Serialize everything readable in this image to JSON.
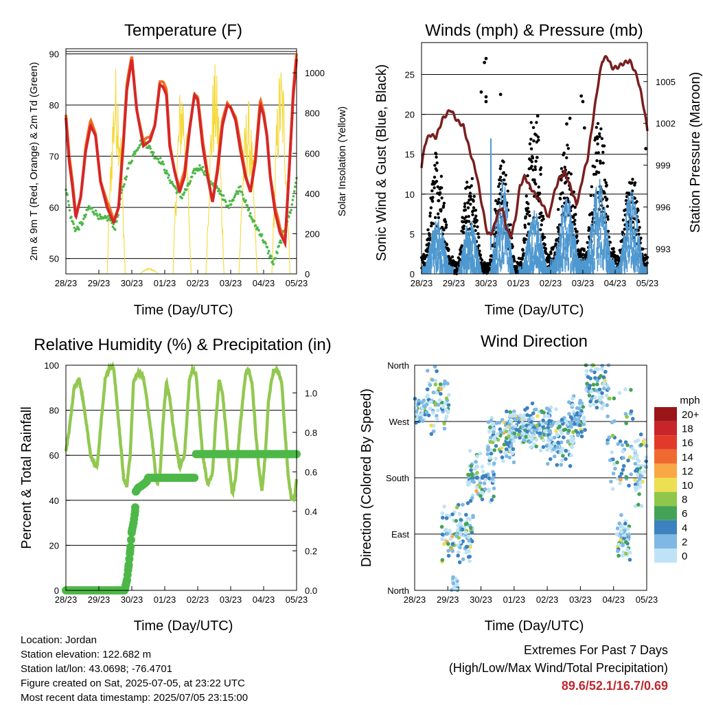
{
  "chart_data": [
    {
      "id": "temperature",
      "type": "line",
      "title": "Temperature (F)",
      "xlabel": "Time (Day/UTC)",
      "ylabel": "2m & 9m T (Red, Orange) & 2m Td (Green)",
      "y2label": "Solar Insolation (Yellow)",
      "x_ticks": [
        "28/23",
        "29/23",
        "30/23",
        "01/23",
        "02/23",
        "03/23",
        "04/23",
        "05/23"
      ],
      "ylim": [
        47,
        91
      ],
      "y_ticks": [
        50,
        60,
        70,
        80,
        90
      ],
      "y2lim": [
        0,
        1120
      ],
      "y2_ticks": [
        0,
        200,
        400,
        600,
        800,
        1000
      ],
      "series": [
        {
          "color": "#d62728",
          "secondary": "#f07020",
          "axis": "left",
          "x": [
            0,
            0.1,
            0.2,
            0.3,
            0.45,
            0.6,
            0.75,
            0.9,
            1.05,
            1.25,
            1.45,
            1.6,
            1.75,
            1.85,
            2.0,
            2.15,
            2.35,
            2.55,
            2.7,
            2.85,
            2.95,
            3.05,
            3.15,
            3.3,
            3.45,
            3.6,
            3.75,
            3.9,
            4.0,
            4.15,
            4.3,
            4.45,
            4.6,
            4.75,
            4.9,
            5.0,
            5.15,
            5.3,
            5.45,
            5.6,
            5.75,
            5.9,
            6.0,
            6.1,
            6.2,
            6.35,
            6.5,
            6.65,
            6.8,
            6.9,
            7.0
          ],
          "y": [
            77.5,
            69,
            64,
            58,
            62,
            71,
            76,
            74,
            65,
            60,
            57,
            60,
            73,
            83,
            89,
            79,
            72,
            73,
            76,
            84,
            83.5,
            82,
            72,
            67,
            63,
            66,
            75,
            82,
            81,
            72,
            66,
            61,
            67,
            76,
            80,
            79.5,
            77,
            71,
            66,
            63,
            69,
            80,
            78,
            74,
            66,
            59,
            55,
            53,
            70,
            82,
            89
          ]
        },
        {
          "color": "#4db848",
          "axis": "left",
          "x": [
            0,
            0.15,
            0.3,
            0.5,
            0.7,
            0.9,
            1.1,
            1.3,
            1.5,
            1.7,
            1.9,
            2.1,
            2.3,
            2.5,
            2.7,
            2.9,
            3.1,
            3.3,
            3.5,
            3.7,
            3.9,
            4.1,
            4.3,
            4.5,
            4.7,
            4.9,
            5.1,
            5.3,
            5.5,
            5.7,
            5.9,
            6.1,
            6.3,
            6.5,
            6.7,
            6.85,
            7.0
          ],
          "y": [
            64,
            58,
            55.5,
            57,
            60,
            59,
            57.5,
            58,
            56,
            63,
            68,
            71,
            73,
            72,
            70,
            69,
            66,
            64,
            62,
            64,
            67,
            68,
            66,
            64,
            63,
            60,
            62,
            64,
            60,
            57,
            55,
            52,
            49,
            53,
            57,
            60,
            66
          ]
        },
        {
          "color": "#f5d93a",
          "axis": "right",
          "day_peaks": [
            0,
            1050,
            30,
            1000,
            1050,
            880,
            1070,
            0
          ]
        }
      ]
    },
    {
      "id": "winds",
      "type": "scatter",
      "title": "Winds (mph) & Pressure (mb)",
      "xlabel": "Time (Day/UTC)",
      "ylabel": "Sonic Wind & Gust (Blue, Black)",
      "y2label": "Station Pressure (Maroon)",
      "x_ticks": [
        "28/23",
        "29/23",
        "30/23",
        "01/23",
        "02/23",
        "03/23",
        "04/23",
        "05/23"
      ],
      "ylim": [
        0,
        29
      ],
      "y_ticks": [
        0,
        5,
        10,
        15,
        20,
        25
      ],
      "y2lim": [
        991.2,
        1007.8
      ],
      "y2_ticks": [
        993,
        996,
        999,
        1002,
        1005
      ],
      "series": [
        {
          "color": "#7a1f1f",
          "axis": "right",
          "x": [
            0,
            0.1,
            0.25,
            0.45,
            0.65,
            0.9,
            1.1,
            1.3,
            1.5,
            1.7,
            1.9,
            2.05,
            2.2,
            2.35,
            2.5,
            2.6,
            2.75,
            2.9,
            3.05,
            3.2,
            3.35,
            3.55,
            3.75,
            3.95,
            4.05,
            4.25,
            4.45,
            4.65,
            4.8,
            4.9,
            5.0,
            5.15,
            5.3,
            5.45,
            5.6,
            5.75,
            5.9,
            6.05,
            6.25,
            6.45,
            6.6,
            6.7,
            6.8,
            6.9,
            7.0
          ],
          "y": [
            998.8,
            1000.5,
            1001.2,
            1001.0,
            1002.3,
            1003.0,
            1002.2,
            1001.8,
            1000.0,
            998.4,
            995.8,
            994.0,
            994.2,
            995.5,
            996.0,
            994.8,
            993.8,
            995.0,
            997.5,
            998.2,
            997.5,
            996.8,
            996.2,
            995.2,
            996.5,
            998.0,
            998.5,
            997.2,
            996.2,
            997.0,
            998.2,
            999.5,
            1002.0,
            1004.5,
            1006.5,
            1006.8,
            1006.0,
            1006.0,
            1006.3,
            1006.5,
            1005.8,
            1005.2,
            1004.2,
            1003.0,
            1001.5
          ]
        },
        {
          "color": "#4f98d0",
          "axis": "left",
          "day_peaks": [
            7,
            7,
            12,
            8,
            10,
            12,
            11,
            5
          ],
          "day_mins": [
            1,
            0,
            0,
            1,
            2,
            2,
            1,
            1
          ],
          "spikes": [
            [
              2.15,
              17
            ]
          ]
        },
        {
          "color": "#000000",
          "axis": "left",
          "day_peaks": [
            15,
            12,
            14,
            20,
            16,
            20,
            12,
            12
          ],
          "outliers": [
            [
              1.95,
              26.5
            ],
            [
              2.0,
              27.0
            ],
            [
              1.85,
              22.8
            ],
            [
              2.0,
              22.2
            ],
            [
              2.0,
              21.6
            ],
            [
              2.45,
              22.5
            ],
            [
              3.6,
              19.8
            ],
            [
              4.6,
              19.5
            ],
            [
              4.5,
              18.8
            ],
            [
              5.0,
              21.6
            ],
            [
              4.95,
              22.3
            ],
            [
              5.05,
              18.3
            ],
            [
              6.95,
              15.7
            ]
          ]
        }
      ]
    },
    {
      "id": "humidity",
      "type": "line",
      "title": "Relative Humidity (%) & Precipitation (in)",
      "xlabel": "Time (Day/UTC)",
      "ylabel": "Percent & Total Rainfall",
      "x_ticks": [
        "28/23",
        "29/23",
        "30/23",
        "01/23",
        "02/23",
        "03/23",
        "04/23",
        "05/23"
      ],
      "ylim": [
        0,
        100
      ],
      "y_ticks": [
        0,
        20,
        40,
        60,
        80,
        100
      ],
      "y2lim": [
        0,
        1.14
      ],
      "y2_ticks": [
        0.0,
        0.2,
        0.4,
        0.6,
        0.8,
        1.0
      ],
      "series": [
        {
          "color": "#92c851",
          "axis": "left",
          "x": [
            0,
            0.1,
            0.25,
            0.4,
            0.55,
            0.75,
            0.85,
            0.95,
            1.05,
            1.2,
            1.3,
            1.45,
            1.6,
            1.75,
            1.85,
            1.95,
            2.05,
            2.2,
            2.35,
            2.5,
            2.65,
            2.75,
            2.85,
            2.95,
            3.05,
            3.15,
            3.3,
            3.45,
            3.6,
            3.75,
            3.85,
            3.95,
            4.05,
            4.15,
            4.3,
            4.45,
            4.55,
            4.65,
            4.75,
            4.85,
            4.95,
            5.05,
            5.15,
            5.3,
            5.45,
            5.55,
            5.65,
            5.75,
            5.85,
            5.95,
            6.05,
            6.15,
            6.3,
            6.45,
            6.55,
            6.65,
            6.75,
            6.85,
            6.95,
            7.0
          ],
          "y": [
            62,
            71,
            90,
            94,
            82,
            60,
            56,
            55,
            72,
            95,
            98,
            99,
            75,
            50,
            46,
            60,
            92,
            97,
            95,
            80,
            62,
            48,
            50,
            75,
            93,
            85,
            68,
            55,
            60,
            94,
            98,
            96,
            78,
            60,
            47,
            52,
            76,
            93,
            88,
            72,
            56,
            43,
            50,
            75,
            96,
            98,
            92,
            72,
            55,
            44,
            60,
            85,
            98,
            97,
            92,
            70,
            50,
            40,
            42,
            50
          ]
        },
        {
          "color": "#4db848",
          "axis": "right",
          "x": [
            0,
            1.78,
            1.85,
            1.9,
            1.95,
            2.0,
            2.05,
            2.1,
            2.12,
            2.2,
            2.3,
            2.45,
            2.5,
            3.9,
            3.92,
            3.95,
            7.0
          ],
          "y": [
            0,
            0,
            0.05,
            0.12,
            0.2,
            0.3,
            0.34,
            0.4,
            0.5,
            0.52,
            0.53,
            0.55,
            0.57,
            0.57,
            0.62,
            0.69,
            0.69
          ]
        }
      ]
    },
    {
      "id": "direction",
      "type": "scatter",
      "title": "Wind Direction",
      "xlabel": "Time (Day/UTC)",
      "ylabel": "Direction (Colored By Speed)",
      "x_ticks": [
        "28/23",
        "29/23",
        "30/23",
        "01/23",
        "02/23",
        "03/23",
        "04/23",
        "05/23"
      ],
      "y_ticks": [
        "North",
        "East",
        "South",
        "West",
        "North"
      ],
      "ylim": [
        0,
        360
      ],
      "legend_title": "mph",
      "legend_position": "right",
      "legend_labels": [
        "20+",
        "18",
        "16",
        "14",
        "12",
        "10",
        "8",
        "6",
        "4",
        "2",
        "0"
      ],
      "legend_colors": [
        "#9a1518",
        "#c8252b",
        "#e23a2a",
        "#f06a30",
        "#f9a845",
        "#ecdf52",
        "#8fc74a",
        "#44a257",
        "#3b82be",
        "#7fb8e2",
        "#bfe3f6"
      ],
      "clusters": [
        {
          "x": 0.15,
          "y": 285,
          "spread": 0.2,
          "ys": 20,
          "n": 45
        },
        {
          "x": 0.7,
          "y": 300,
          "spread": 0.35,
          "ys": 40,
          "n": 70
        },
        {
          "x": 1.3,
          "y": 90,
          "spread": 0.5,
          "ys": 35,
          "n": 110
        },
        {
          "x": 2.0,
          "y": 180,
          "spread": 0.4,
          "ys": 30,
          "n": 90
        },
        {
          "x": 2.6,
          "y": 240,
          "spread": 0.4,
          "ys": 25,
          "n": 90
        },
        {
          "x": 3.15,
          "y": 260,
          "spread": 0.4,
          "ys": 20,
          "n": 80
        },
        {
          "x": 3.7,
          "y": 260,
          "spread": 0.45,
          "ys": 25,
          "n": 110
        },
        {
          "x": 4.4,
          "y": 245,
          "spread": 0.4,
          "ys": 30,
          "n": 100
        },
        {
          "x": 4.9,
          "y": 275,
          "spread": 0.25,
          "ys": 25,
          "n": 70
        },
        {
          "x": 5.5,
          "y": 320,
          "spread": 0.35,
          "ys": 30,
          "n": 70
        },
        {
          "x": 6.2,
          "y": 240,
          "spread": 0.4,
          "ys": 60,
          "n": 60
        },
        {
          "x": 6.3,
          "y": 80,
          "spread": 0.2,
          "ys": 30,
          "n": 60
        },
        {
          "x": 6.85,
          "y": 190,
          "spread": 0.2,
          "ys": 40,
          "n": 60
        },
        {
          "x": 1.2,
          "y": 10,
          "spread": 0.1,
          "ys": 10,
          "n": 15
        }
      ]
    }
  ],
  "meta": {
    "location": "Location: Jordan",
    "elevation": "Station elevation: 122.682 m",
    "latlon": "Station lat/lon: 43.0698; -76.4701",
    "created": "Figure created on Sat, 2025-07-05, at 23:22 UTC",
    "recent": "Most recent data timestamp: 2025/07/05 23:15:00"
  },
  "extremes": {
    "title": "Extremes For Past 7 Days",
    "subtitle": "(High/Low/Max Wind/Total Precipitation)",
    "values": "89.6/52.1/16.7/0.69"
  }
}
